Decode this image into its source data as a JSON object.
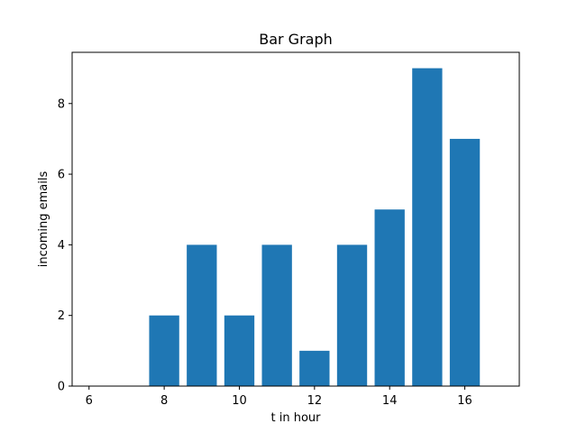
{
  "chart_data": {
    "type": "bar",
    "title": "Bar Graph",
    "xlabel": "t in hour",
    "ylabel": "incoming emails",
    "x": [
      6,
      7,
      8,
      9,
      10,
      11,
      12,
      13,
      14,
      15,
      16
    ],
    "values": [
      0,
      0,
      2,
      4,
      2,
      4,
      1,
      4,
      5,
      9,
      7
    ],
    "xlim": [
      5.55,
      17.45
    ],
    "ylim": [
      0,
      9.45
    ],
    "xticks": [
      6,
      8,
      10,
      12,
      14,
      16
    ],
    "yticks": [
      0,
      2,
      4,
      6,
      8
    ],
    "bar_color": "#1f77b4",
    "grid": false,
    "legend": "none"
  }
}
